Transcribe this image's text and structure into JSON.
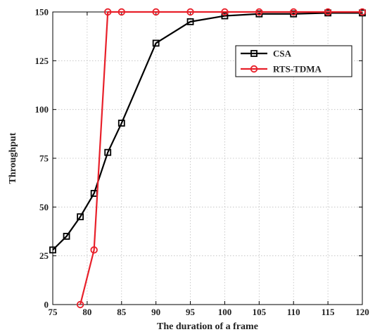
{
  "chart_data": {
    "type": "line",
    "title": "",
    "xlabel": "The duration of a frame",
    "ylabel": "Throughput",
    "xlim": [
      75,
      120
    ],
    "ylim": [
      0,
      150
    ],
    "xticks": [
      75,
      80,
      85,
      90,
      95,
      100,
      105,
      110,
      115,
      120
    ],
    "yticks": [
      0,
      25,
      50,
      75,
      100,
      125,
      150
    ],
    "grid": true,
    "legend_position": "top-right",
    "series": [
      {
        "name": "CSA",
        "color": "#000000",
        "marker": "square",
        "x": [
          75,
          77,
          79,
          81,
          83,
          85,
          90,
          95,
          100,
          105,
          110,
          115,
          120
        ],
        "y": [
          28,
          35,
          45,
          57,
          78,
          93,
          134,
          145,
          148,
          149,
          149,
          149.5,
          149.5
        ]
      },
      {
        "name": "RTS-TDMA",
        "color": "#e8202a",
        "marker": "circle",
        "x": [
          79,
          81,
          83,
          85,
          90,
          95,
          100,
          105,
          110,
          115,
          120
        ],
        "y": [
          0,
          28,
          150,
          150,
          150,
          150,
          150,
          150,
          150,
          150,
          150
        ]
      }
    ]
  }
}
